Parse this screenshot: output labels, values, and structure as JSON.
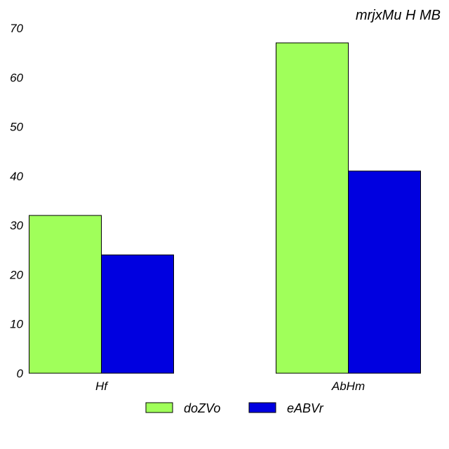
{
  "chart_data": {
    "type": "bar",
    "title": "mrjxMu H MB",
    "xlabel": "",
    "ylabel": "",
    "categories": [
      "Hf",
      "AbHm"
    ],
    "series": [
      {
        "name": "doZVo",
        "values": [
          32,
          67
        ],
        "color": "#a0ff5a"
      },
      {
        "name": "eABVr",
        "values": [
          24,
          41
        ],
        "color": "#0000e0"
      }
    ],
    "ylim": [
      0,
      70
    ],
    "yticks": [
      0,
      10,
      20,
      30,
      40,
      50,
      60,
      70
    ],
    "grid": false,
    "legend_position": "bottom"
  }
}
